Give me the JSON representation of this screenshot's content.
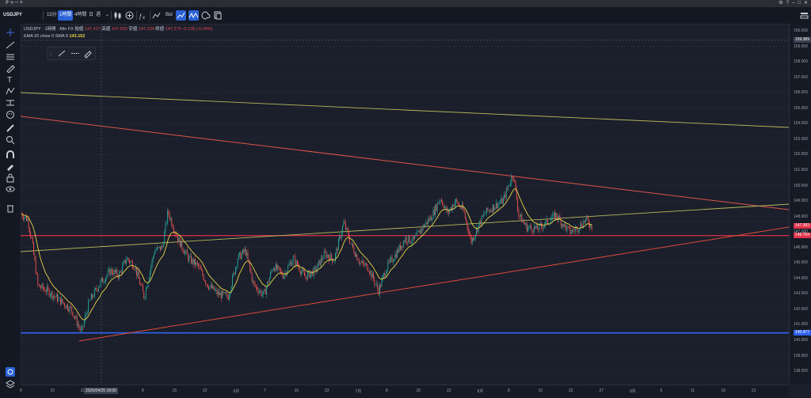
{
  "window": {
    "title": "チャート"
  },
  "toolbar": {
    "symbol": "USDJPY",
    "timeframes": [
      "15分",
      "1時間",
      "4時間",
      "日",
      "週"
    ],
    "active_timeframe_index": 1,
    "price_type": "Bid"
  },
  "legend": {
    "title": "USDJPY · 1時間 · Min FX",
    "open_label": "始値",
    "open": "147.417",
    "high_label": "高値",
    "high": "147.520",
    "low_label": "安値",
    "low": "147.234",
    "close_label": "終値",
    "close": "147.279",
    "change": "-0.138 (-0.09%)",
    "ema_label": "EMA 20 close 0 SMA 9",
    "ema_value": "143.152"
  },
  "price_scale": {
    "labels": [
      "160.000",
      "159.000",
      "158.000",
      "157.000",
      "156.000",
      "155.000",
      "154.000",
      "153.000",
      "152.000",
      "151.000",
      "150.000",
      "149.000",
      "148.000",
      "147.000",
      "146.000",
      "145.000",
      "144.000",
      "143.000",
      "142.000",
      "141.000",
      "140.000",
      "139.000",
      "138.000"
    ],
    "tags": [
      {
        "text": "159.389",
        "color": "#3a4150"
      },
      {
        "text": "147.383",
        "color": "#e0334a"
      },
      {
        "text": "146.764",
        "color": "#e0334a"
      },
      {
        "text": "140.477",
        "color": "#2f62f0"
      }
    ]
  },
  "time_axis": {
    "labels": [
      "8",
      "15",
      "22",
      "5月",
      "8",
      "15",
      "22",
      "6月",
      "7",
      "15",
      "23",
      "7月",
      "8",
      "15",
      "22",
      "8月",
      "8",
      "15",
      "22",
      "27",
      "9月",
      "6",
      "11",
      "16",
      "21"
    ],
    "crosshair_label": "2025/04/25 18:00"
  },
  "colors": {
    "up": "#26a69a",
    "down": "#ef5350",
    "ema": "#e8d44a",
    "support_line": "#e04a3a",
    "horizontal_blue": "#2f62f0",
    "horizontal_red": "#e0334a",
    "upper_trend": "#b9b85a"
  }
}
